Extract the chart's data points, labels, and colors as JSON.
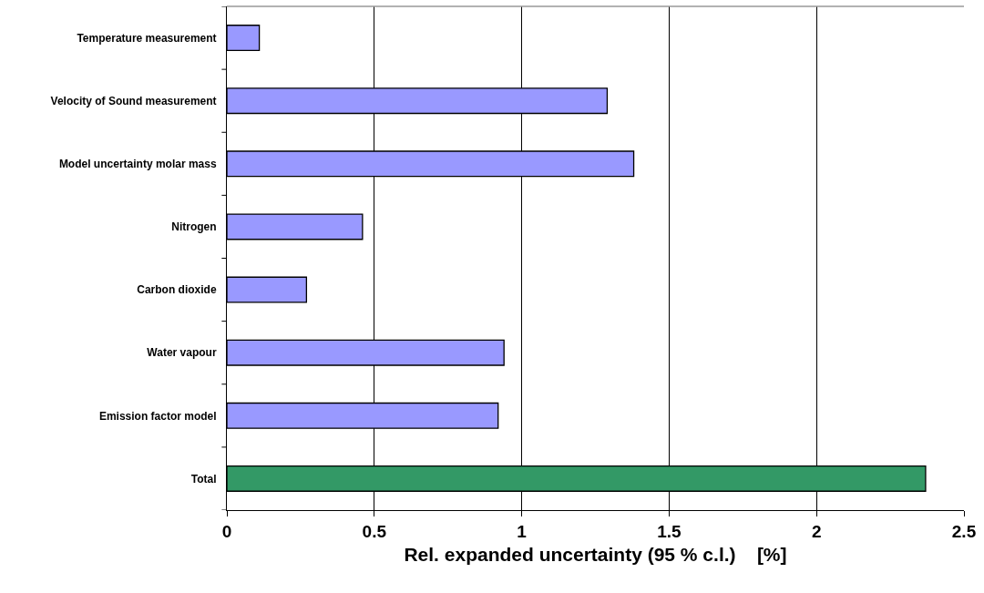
{
  "chart_data": {
    "type": "bar",
    "orientation": "horizontal",
    "xlabel": "Rel. expanded uncertainty (95 % c.l.)    [%]",
    "categories": [
      "Temperature measurement",
      "Velocity of Sound measurement",
      "Model uncertainty molar mass",
      "Nitrogen",
      "Carbon dioxide",
      "Water vapour",
      "Emission factor model",
      "Total"
    ],
    "values": [
      0.11,
      1.29,
      1.38,
      0.46,
      0.27,
      0.94,
      0.92,
      2.37
    ],
    "colors": [
      "#9999ff",
      "#9999ff",
      "#9999ff",
      "#9999ff",
      "#9999ff",
      "#9999ff",
      "#9999ff",
      "#339966"
    ],
    "xlim": [
      0,
      2.5
    ],
    "xticks": [
      0,
      0.5,
      1,
      1.5,
      2,
      2.5
    ],
    "grid": "x",
    "legend": false
  }
}
